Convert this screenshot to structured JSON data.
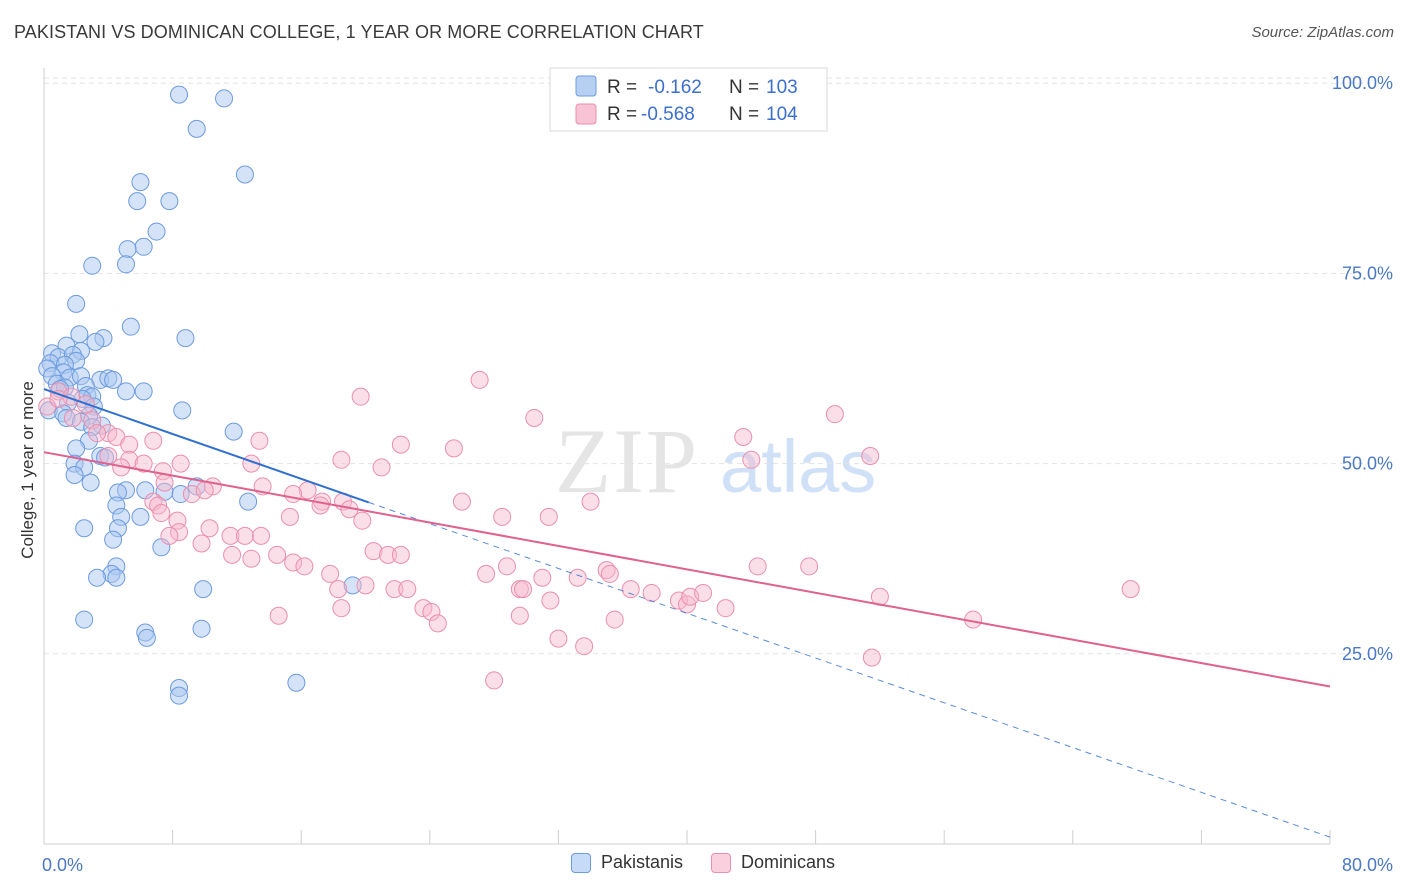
{
  "header": {
    "title": "PAKISTANI VS DOMINICAN COLLEGE, 1 YEAR OR MORE CORRELATION CHART",
    "source": "Source: ZipAtlas.com"
  },
  "colors": {
    "blue_fill": "#a9c8f0",
    "blue_stroke": "#6d9be0",
    "blue_line": "#2f6fd0",
    "pink_fill": "#f7b9cd",
    "pink_stroke": "#ea8fae",
    "pink_line": "#e0608e",
    "tick_text": "#4a78c4"
  },
  "legend": {
    "rows": [
      {
        "r_label": "R =",
        "r_value": "-0.162",
        "n_label": "N =",
        "n_value": "103"
      },
      {
        "r_label": "R =",
        "r_value": "-0.568",
        "n_label": "N =",
        "n_value": "104"
      }
    ]
  },
  "bottom_legend": {
    "items": [
      {
        "label": "Pakistanis"
      },
      {
        "label": "Dominicans"
      }
    ]
  },
  "chart_data": {
    "type": "scatter",
    "title": "PAKISTANI VS DOMINICAN COLLEGE, 1 YEAR OR MORE CORRELATION CHART",
    "xlabel": "",
    "ylabel": "College, 1 year or more",
    "xlim": [
      0,
      80
    ],
    "ylim": [
      0,
      102
    ],
    "x_tick_labels": [
      "0.0%",
      "80.0%"
    ],
    "y_tick_values": [
      25,
      50,
      75,
      100
    ],
    "y_tick_labels": [
      "25.0%",
      "50.0%",
      "75.0%",
      "100.0%"
    ],
    "grid": true,
    "watermark": "ZIPatlas",
    "series": [
      {
        "name": "Pakistanis",
        "color": "#a9c8f0",
        "trend": {
          "x": [
            0,
            20.2
          ],
          "y": [
            59.8,
            44.9
          ],
          "dashed_extension_to": [
            80,
            0.9
          ]
        },
        "points": [
          [
            8.4,
            98.5
          ],
          [
            11.2,
            98.0
          ],
          [
            9.5,
            94.0
          ],
          [
            12.5,
            88.0
          ],
          [
            6.0,
            87.0
          ],
          [
            5.8,
            84.5
          ],
          [
            7.8,
            84.5
          ],
          [
            7.0,
            80.5
          ],
          [
            6.2,
            78.5
          ],
          [
            5.2,
            78.2
          ],
          [
            5.1,
            76.2
          ],
          [
            3.0,
            76.0
          ],
          [
            2.0,
            71.0
          ],
          [
            5.4,
            68.0
          ],
          [
            8.8,
            66.5
          ],
          [
            2.2,
            67.0
          ],
          [
            3.7,
            66.5
          ],
          [
            3.2,
            66.0
          ],
          [
            1.4,
            65.5
          ],
          [
            2.3,
            64.8
          ],
          [
            0.5,
            64.5
          ],
          [
            0.9,
            64.0
          ],
          [
            1.8,
            64.3
          ],
          [
            2.0,
            63.5
          ],
          [
            0.4,
            63.2
          ],
          [
            1.3,
            63.0
          ],
          [
            0.2,
            62.5
          ],
          [
            1.2,
            62.0
          ],
          [
            0.5,
            61.5
          ],
          [
            1.6,
            61.3
          ],
          [
            2.3,
            61.5
          ],
          [
            3.5,
            61.0
          ],
          [
            4.0,
            61.2
          ],
          [
            4.3,
            61.0
          ],
          [
            0.8,
            60.5
          ],
          [
            1.3,
            60.0
          ],
          [
            2.6,
            60.2
          ],
          [
            5.1,
            59.5
          ],
          [
            6.2,
            59.5
          ],
          [
            1.0,
            59.8
          ],
          [
            2.7,
            59.0
          ],
          [
            3.0,
            58.8
          ],
          [
            2.4,
            58.5
          ],
          [
            1.5,
            58.0
          ],
          [
            3.1,
            57.5
          ],
          [
            0.3,
            57.0
          ],
          [
            1.2,
            56.6
          ],
          [
            2.8,
            56.3
          ],
          [
            8.6,
            57.0
          ],
          [
            1.4,
            56.0
          ],
          [
            2.3,
            55.5
          ],
          [
            3.6,
            55.0
          ],
          [
            3.0,
            54.8
          ],
          [
            11.8,
            54.2
          ],
          [
            2.8,
            53.0
          ],
          [
            2.0,
            52.0
          ],
          [
            3.5,
            51.0
          ],
          [
            3.8,
            50.8
          ],
          [
            1.9,
            50.0
          ],
          [
            2.5,
            49.5
          ],
          [
            1.9,
            48.5
          ],
          [
            2.9,
            47.5
          ],
          [
            9.5,
            47.0
          ],
          [
            6.3,
            46.5
          ],
          [
            7.5,
            46.3
          ],
          [
            5.1,
            46.5
          ],
          [
            4.6,
            46.2
          ],
          [
            8.5,
            46.0
          ],
          [
            12.7,
            45.0
          ],
          [
            4.5,
            44.5
          ],
          [
            6.0,
            43.0
          ],
          [
            4.8,
            43.0
          ],
          [
            4.6,
            41.5
          ],
          [
            2.5,
            41.5
          ],
          [
            4.3,
            40.0
          ],
          [
            7.3,
            39.0
          ],
          [
            4.5,
            36.5
          ],
          [
            4.2,
            35.5
          ],
          [
            3.3,
            35.0
          ],
          [
            4.5,
            35.0
          ],
          [
            19.2,
            34.0
          ],
          [
            9.9,
            33.5
          ],
          [
            2.5,
            29.5
          ],
          [
            9.8,
            28.3
          ],
          [
            6.3,
            27.8
          ],
          [
            6.4,
            27.1
          ],
          [
            15.7,
            21.2
          ],
          [
            8.4,
            20.5
          ],
          [
            8.4,
            19.5
          ]
        ]
      },
      {
        "name": "Dominicans",
        "color": "#f7b9cd",
        "trend": {
          "x": [
            0,
            80
          ],
          "y": [
            51.5,
            20.7
          ]
        },
        "points": [
          [
            0.2,
            57.5
          ],
          [
            0.9,
            59.5
          ],
          [
            1.7,
            58.8
          ],
          [
            0.9,
            58.5
          ],
          [
            2.6,
            57.8
          ],
          [
            1.8,
            56.0
          ],
          [
            3.0,
            55.7
          ],
          [
            4.0,
            54.0
          ],
          [
            3.3,
            54.0
          ],
          [
            4.5,
            53.5
          ],
          [
            6.8,
            53.0
          ],
          [
            5.3,
            52.5
          ],
          [
            4.0,
            51.0
          ],
          [
            5.3,
            50.5
          ],
          [
            6.2,
            50.0
          ],
          [
            8.5,
            50.0
          ],
          [
            4.8,
            49.5
          ],
          [
            7.4,
            49.0
          ],
          [
            7.5,
            47.5
          ],
          [
            10.5,
            47.0
          ],
          [
            9.2,
            46.0
          ],
          [
            10.0,
            46.5
          ],
          [
            6.8,
            45.0
          ],
          [
            7.1,
            44.5
          ],
          [
            7.3,
            43.5
          ],
          [
            8.3,
            42.5
          ],
          [
            8.4,
            41.0
          ],
          [
            7.8,
            40.5
          ],
          [
            9.8,
            39.5
          ],
          [
            10.3,
            41.5
          ],
          [
            11.6,
            40.5
          ],
          [
            12.5,
            40.5
          ],
          [
            13.5,
            40.5
          ],
          [
            11.7,
            38.0
          ],
          [
            12.9,
            37.5
          ],
          [
            14.5,
            38.0
          ],
          [
            15.5,
            37.0
          ],
          [
            16.2,
            36.5
          ],
          [
            15.3,
            43.0
          ],
          [
            14.6,
            30.0
          ],
          [
            16.4,
            46.5
          ],
          [
            17.3,
            45.0
          ],
          [
            18.6,
            45.0
          ],
          [
            19.0,
            44.0
          ],
          [
            19.8,
            42.5
          ],
          [
            17.8,
            35.5
          ],
          [
            18.3,
            33.5
          ],
          [
            18.5,
            31.0
          ],
          [
            20.0,
            34.0
          ],
          [
            20.5,
            38.5
          ],
          [
            21.4,
            38.0
          ],
          [
            22.2,
            38.0
          ],
          [
            21.8,
            33.5
          ],
          [
            22.6,
            33.5
          ],
          [
            23.6,
            31.0
          ],
          [
            24.1,
            30.5
          ],
          [
            24.5,
            29.0
          ],
          [
            25.5,
            52.0
          ],
          [
            26.0,
            45.0
          ],
          [
            27.1,
            61.0
          ],
          [
            27.5,
            35.5
          ],
          [
            28.0,
            21.5
          ],
          [
            28.5,
            43.0
          ],
          [
            28.8,
            36.5
          ],
          [
            29.6,
            33.5
          ],
          [
            29.6,
            30.0
          ],
          [
            29.8,
            33.5
          ],
          [
            30.5,
            56.0
          ],
          [
            31.0,
            35.0
          ],
          [
            31.4,
            43.0
          ],
          [
            31.5,
            32.0
          ],
          [
            32.0,
            27.0
          ],
          [
            33.2,
            35.0
          ],
          [
            33.6,
            26.0
          ],
          [
            34.0,
            45.0
          ],
          [
            35.0,
            36.0
          ],
          [
            35.2,
            35.5
          ],
          [
            35.5,
            29.5
          ],
          [
            36.5,
            33.5
          ],
          [
            37.8,
            33.0
          ],
          [
            39.5,
            32.0
          ],
          [
            40.0,
            31.5
          ],
          [
            40.2,
            32.5
          ],
          [
            41.0,
            33.0
          ],
          [
            42.4,
            31.0
          ],
          [
            43.5,
            53.5
          ],
          [
            44.0,
            50.5
          ],
          [
            44.4,
            36.5
          ],
          [
            47.6,
            36.5
          ],
          [
            49.2,
            56.5
          ],
          [
            51.4,
            51.0
          ],
          [
            51.5,
            24.5
          ],
          [
            52.0,
            32.5
          ],
          [
            57.8,
            29.5
          ],
          [
            67.6,
            33.5
          ],
          [
            12.9,
            50.0
          ],
          [
            13.4,
            53.0
          ],
          [
            17.2,
            44.5
          ],
          [
            21.0,
            49.5
          ],
          [
            22.2,
            52.5
          ],
          [
            15.5,
            46.0
          ],
          [
            18.5,
            50.5
          ],
          [
            13.6,
            47.0
          ],
          [
            19.7,
            58.8
          ]
        ]
      }
    ]
  }
}
